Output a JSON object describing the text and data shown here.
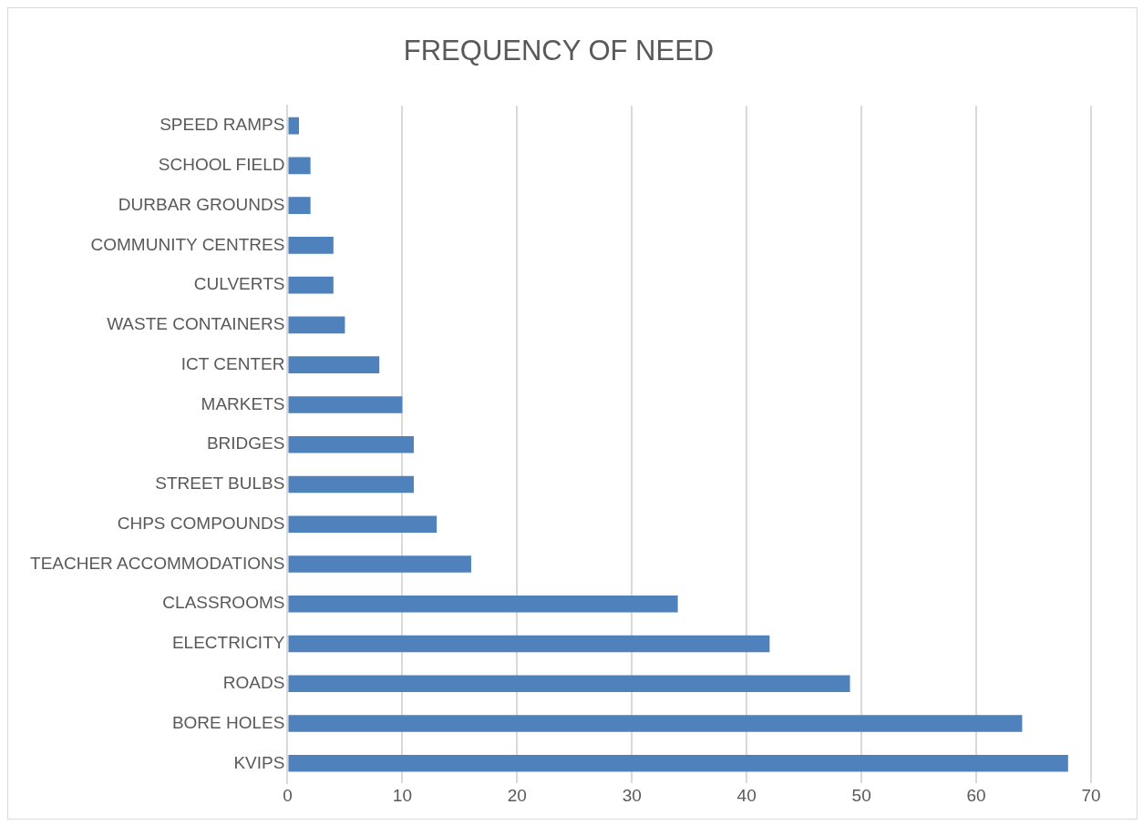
{
  "chart_data": {
    "type": "bar",
    "orientation": "horizontal",
    "title": "FREQUENCY OF NEED",
    "categories": [
      "SPEED RAMPS",
      "SCHOOL FIELD",
      "DURBAR GROUNDS",
      "COMMUNITY CENTRES",
      "CULVERTS",
      "WASTE CONTAINERS",
      "ICT CENTER",
      "MARKETS",
      "BRIDGES",
      "STREET BULBS",
      "CHPS COMPOUNDS",
      "TEACHER ACCOMMODATIONS",
      "CLASSROOMS",
      "ELECTRICITY",
      "ROADS",
      "BORE HOLES",
      "KVIPS"
    ],
    "values": [
      1,
      2,
      2,
      4,
      4,
      5,
      8,
      10,
      11,
      11,
      13,
      16,
      34,
      42,
      49,
      64,
      68
    ],
    "color": "#4f81bd",
    "xlim": [
      0,
      70
    ],
    "xticks": [
      0,
      10,
      20,
      30,
      40,
      50,
      60,
      70
    ],
    "grid": "x",
    "legend": false
  }
}
